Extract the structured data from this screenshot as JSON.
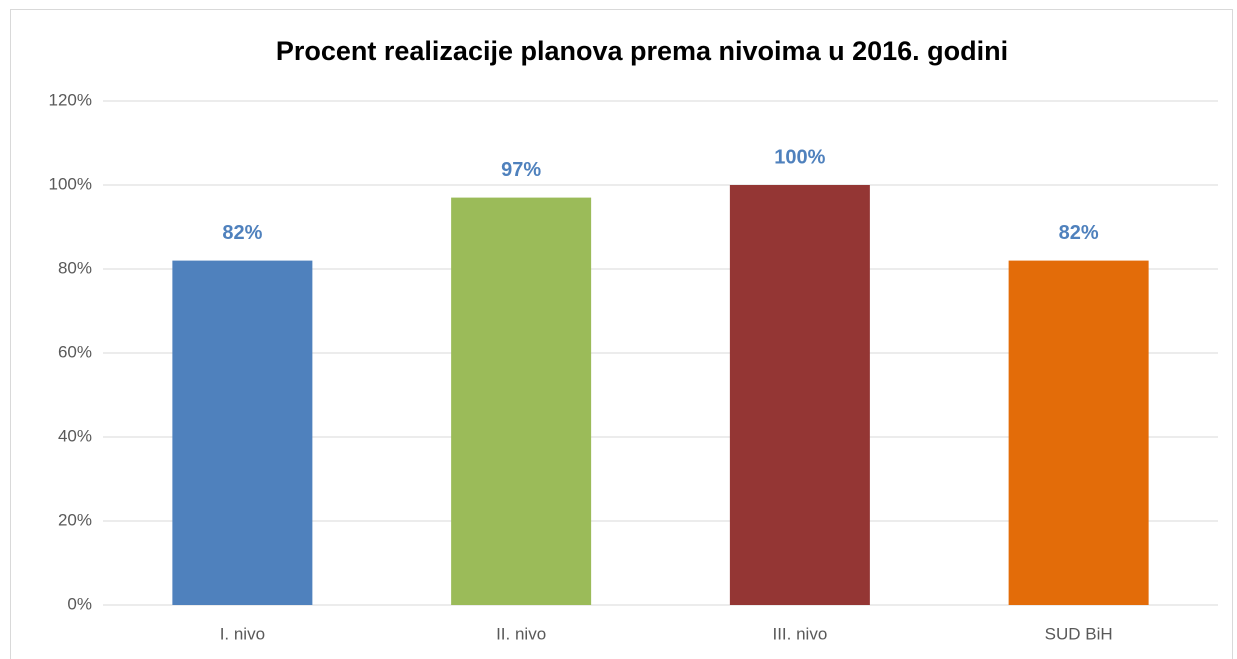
{
  "chart_data": {
    "type": "bar",
    "title": "Procent realizacije planova prema nivoima u 2016. godini",
    "categories": [
      "I. nivo",
      "II. nivo",
      "III. nivo",
      "SUD BiH"
    ],
    "values": [
      82,
      97,
      100,
      82
    ],
    "value_labels": [
      "82%",
      "97%",
      "100%",
      "82%"
    ],
    "colors": [
      "#4f81bd",
      "#9bbb59",
      "#943634",
      "#e36c09"
    ],
    "ylim": [
      0,
      120
    ],
    "yticks": [
      {
        "value": 0,
        "label": "0%"
      },
      {
        "value": 20,
        "label": "20%"
      },
      {
        "value": 40,
        "label": "40%"
      },
      {
        "value": 60,
        "label": "60%"
      },
      {
        "value": 80,
        "label": "80%"
      },
      {
        "value": 100,
        "label": "100%"
      },
      {
        "value": 120,
        "label": "120%"
      }
    ],
    "grid": true
  }
}
